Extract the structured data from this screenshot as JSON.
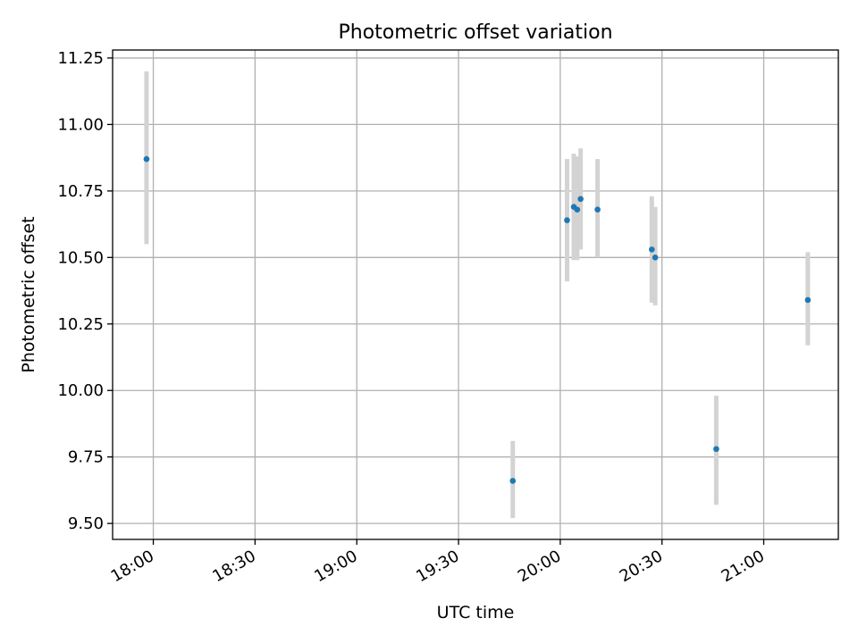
{
  "chart_data": {
    "type": "scatter",
    "title": "Photometric offset variation",
    "xlabel": "UTC time",
    "ylabel": "Photometric offset",
    "xlim": [
      "17:48",
      "21:22"
    ],
    "ylim": [
      9.44,
      11.28
    ],
    "x_ticks": [
      "18:00",
      "18:30",
      "19:00",
      "19:30",
      "20:00",
      "20:30",
      "21:00"
    ],
    "y_ticks": [
      "9.50",
      "9.75",
      "10.00",
      "10.25",
      "10.50",
      "10.75",
      "11.00",
      "11.25"
    ],
    "grid": true,
    "marker_color": "#1f77b4",
    "errorbar_color": "#d3d3d3",
    "points": [
      {
        "time": "17:58",
        "offset": 10.87,
        "err_low": 10.55,
        "err_high": 11.2
      },
      {
        "time": "19:46",
        "offset": 9.66,
        "err_low": 9.52,
        "err_high": 9.81
      },
      {
        "time": "20:02",
        "offset": 10.64,
        "err_low": 10.41,
        "err_high": 10.87
      },
      {
        "time": "20:04",
        "offset": 10.69,
        "err_low": 10.49,
        "err_high": 10.89
      },
      {
        "time": "20:05",
        "offset": 10.68,
        "err_low": 10.49,
        "err_high": 10.88
      },
      {
        "time": "20:06",
        "offset": 10.72,
        "err_low": 10.53,
        "err_high": 10.91
      },
      {
        "time": "20:11",
        "offset": 10.68,
        "err_low": 10.5,
        "err_high": 10.87
      },
      {
        "time": "20:27",
        "offset": 10.53,
        "err_low": 10.33,
        "err_high": 10.73
      },
      {
        "time": "20:28",
        "offset": 10.5,
        "err_low": 10.32,
        "err_high": 10.69
      },
      {
        "time": "20:46",
        "offset": 9.78,
        "err_low": 9.57,
        "err_high": 9.98
      },
      {
        "time": "21:13",
        "offset": 10.34,
        "err_low": 10.17,
        "err_high": 10.52
      }
    ]
  }
}
